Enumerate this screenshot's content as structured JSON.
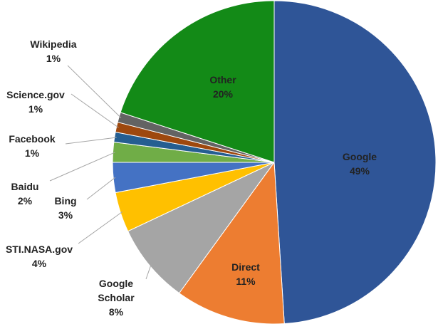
{
  "chart_data": {
    "type": "pie",
    "categories": [
      "Google",
      "Direct",
      "Google Scholar",
      "STI.NASA.gov",
      "Bing",
      "Baidu",
      "Facebook",
      "Science.gov",
      "Wikipedia",
      "Other"
    ],
    "values": [
      49,
      11,
      8,
      4,
      3,
      2,
      1,
      1,
      1,
      20
    ],
    "value_labels": [
      "49%",
      "11%",
      "8%",
      "4%",
      "3%",
      "2%",
      "1%",
      "1%",
      "1%",
      "20%"
    ],
    "colors": [
      "#2f5597",
      "#ed7d31",
      "#a5a5a5",
      "#ffc000",
      "#4472c4",
      "#70ad47",
      "#255e91",
      "#9e480e",
      "#636363",
      "#138a17"
    ]
  }
}
